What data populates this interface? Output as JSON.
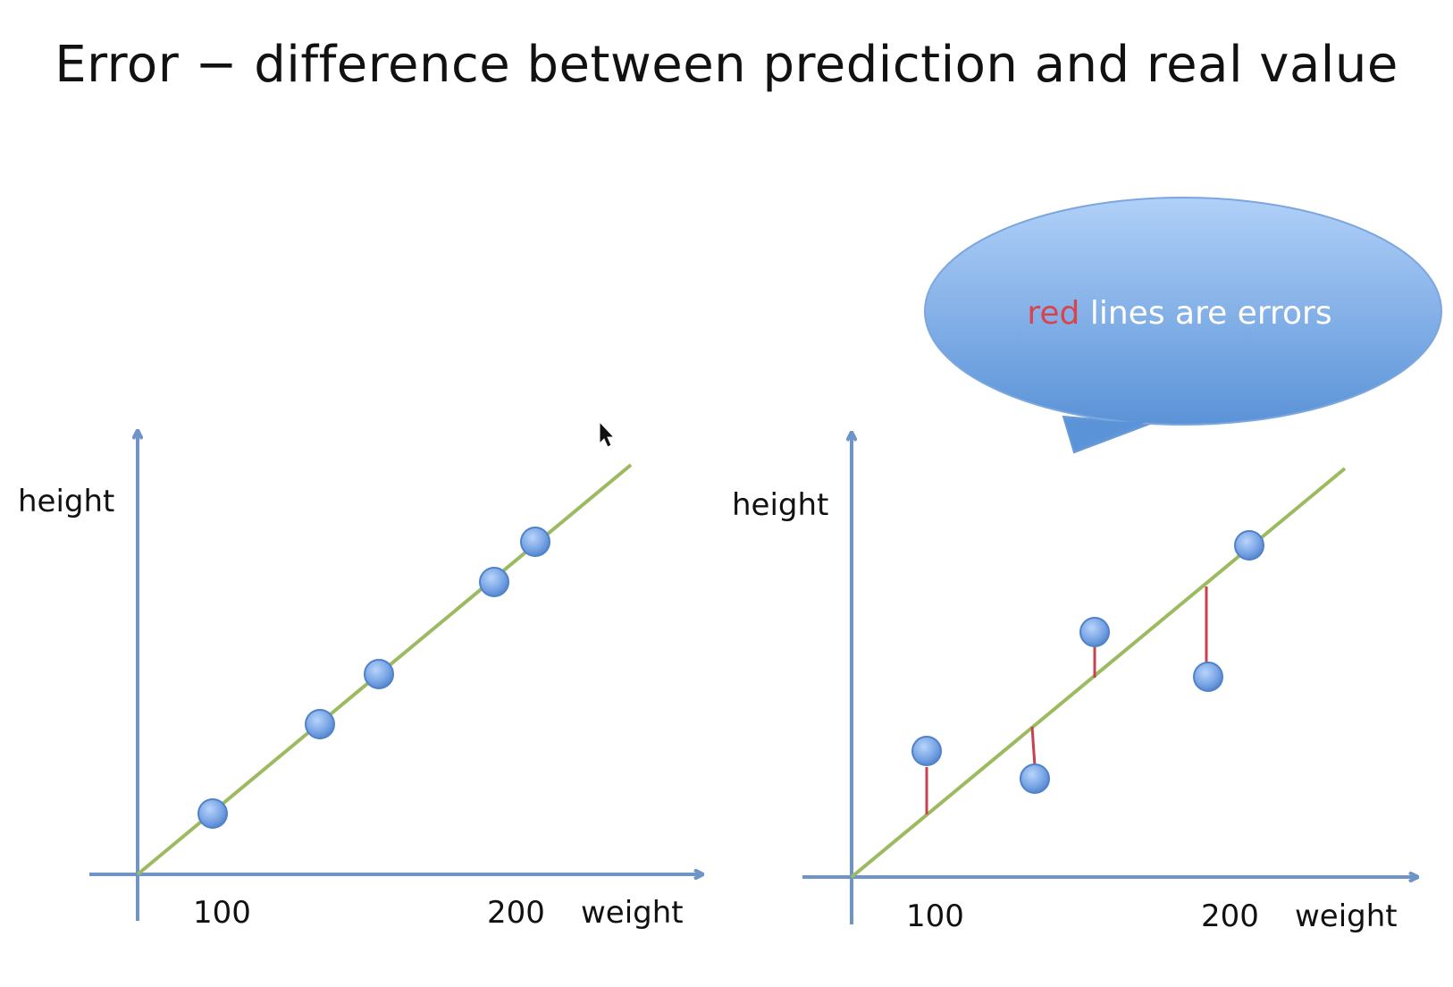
{
  "title": "Error − difference between prediction and real value",
  "callout": {
    "red_word": "red",
    "rest": " lines are errors"
  },
  "charts": {
    "left": {
      "ylabel": "height",
      "xlabel": "weight",
      "tick_100": "100",
      "tick_200": "200"
    },
    "right": {
      "ylabel": "height",
      "xlabel": "weight",
      "tick_100": "100",
      "tick_200": "200"
    }
  },
  "colors": {
    "axis": "#6f95c8",
    "fit_line": "#9cba5f",
    "error_line": "#c9414c",
    "point_fill": "#7aa6e6",
    "bubble_top": "#a9cbf6",
    "bubble_bottom": "#5b93d8"
  },
  "icons": {
    "cursor": "mouse-pointer-icon"
  }
}
